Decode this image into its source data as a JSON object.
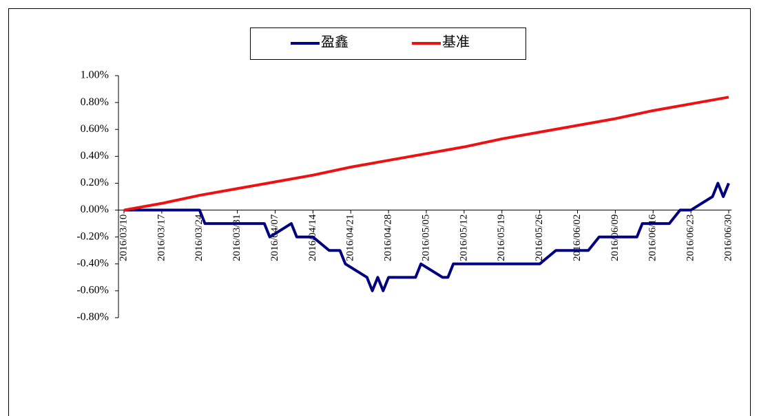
{
  "chart_data": {
    "type": "line",
    "series": [
      {
        "name": "盈鑫",
        "color": "#000080",
        "x": [
          "2016/03/10",
          "2016/03/24",
          "2016/03/25",
          "2016/04/05",
          "2016/04/06",
          "2016/04/10",
          "2016/04/11",
          "2016/04/14",
          "2016/04/17",
          "2016/04/19",
          "2016/04/20",
          "2016/04/24",
          "2016/04/25",
          "2016/04/26",
          "2016/04/27",
          "2016/04/28",
          "2016/05/03",
          "2016/05/04",
          "2016/05/08",
          "2016/05/09",
          "2016/05/10",
          "2016/05/26",
          "2016/05/29",
          "2016/06/04",
          "2016/06/06",
          "2016/06/13",
          "2016/06/14",
          "2016/06/19",
          "2016/06/21",
          "2016/06/23",
          "2016/06/27",
          "2016/06/28",
          "2016/06/29",
          "2016/06/30"
        ],
        "values": [
          0,
          0,
          -0.1,
          -0.1,
          -0.2,
          -0.1,
          -0.2,
          -0.2,
          -0.3,
          -0.3,
          -0.4,
          -0.5,
          -0.6,
          -0.5,
          -0.6,
          -0.5,
          -0.5,
          -0.4,
          -0.5,
          -0.5,
          -0.4,
          -0.4,
          -0.3,
          -0.3,
          -0.2,
          -0.2,
          -0.1,
          -0.1,
          0,
          0,
          0.1,
          0.2,
          0.1,
          0.2
        ]
      },
      {
        "name": "基准",
        "color": "#ee1111",
        "x": [
          "2016/03/10",
          "2016/03/17",
          "2016/03/24",
          "2016/03/31",
          "2016/04/07",
          "2016/04/14",
          "2016/04/21",
          "2016/04/28",
          "2016/05/05",
          "2016/05/12",
          "2016/05/19",
          "2016/05/26",
          "2016/06/02",
          "2016/06/09",
          "2016/06/16",
          "2016/06/23",
          "2016/06/30"
        ],
        "values": [
          0,
          0.05,
          0.11,
          0.16,
          0.21,
          0.26,
          0.32,
          0.37,
          0.42,
          0.47,
          0.53,
          0.58,
          0.63,
          0.68,
          0.74,
          0.79,
          0.84
        ]
      }
    ],
    "xticks": [
      "2016/03/10",
      "2016/03/17",
      "2016/03/24",
      "2016/03/31",
      "2016/04/07",
      "2016/04/14",
      "2016/04/21",
      "2016/04/28",
      "2016/05/05",
      "2016/05/12",
      "2016/05/19",
      "2016/05/26",
      "2016/06/02",
      "2016/06/09",
      "2016/06/16",
      "2016/06/23",
      "2016/06/30"
    ],
    "ylim": [
      -0.8,
      1.0
    ],
    "yticks": [
      {
        "value": 1.0,
        "label": "1.00%"
      },
      {
        "value": 0.8,
        "label": "0.80%"
      },
      {
        "value": 0.6,
        "label": "0.60%"
      },
      {
        "value": 0.4,
        "label": "0.40%"
      },
      {
        "value": 0.2,
        "label": "0.20%"
      },
      {
        "value": 0,
        "label": "0.00%"
      },
      {
        "value": -0.2,
        "label": "-0.20%"
      },
      {
        "value": -0.4,
        "label": "-0.40%"
      },
      {
        "value": -0.6,
        "label": "-0.60%"
      },
      {
        "value": -0.8,
        "label": "-0.80%"
      }
    ],
    "legend": "top",
    "grid": false
  }
}
